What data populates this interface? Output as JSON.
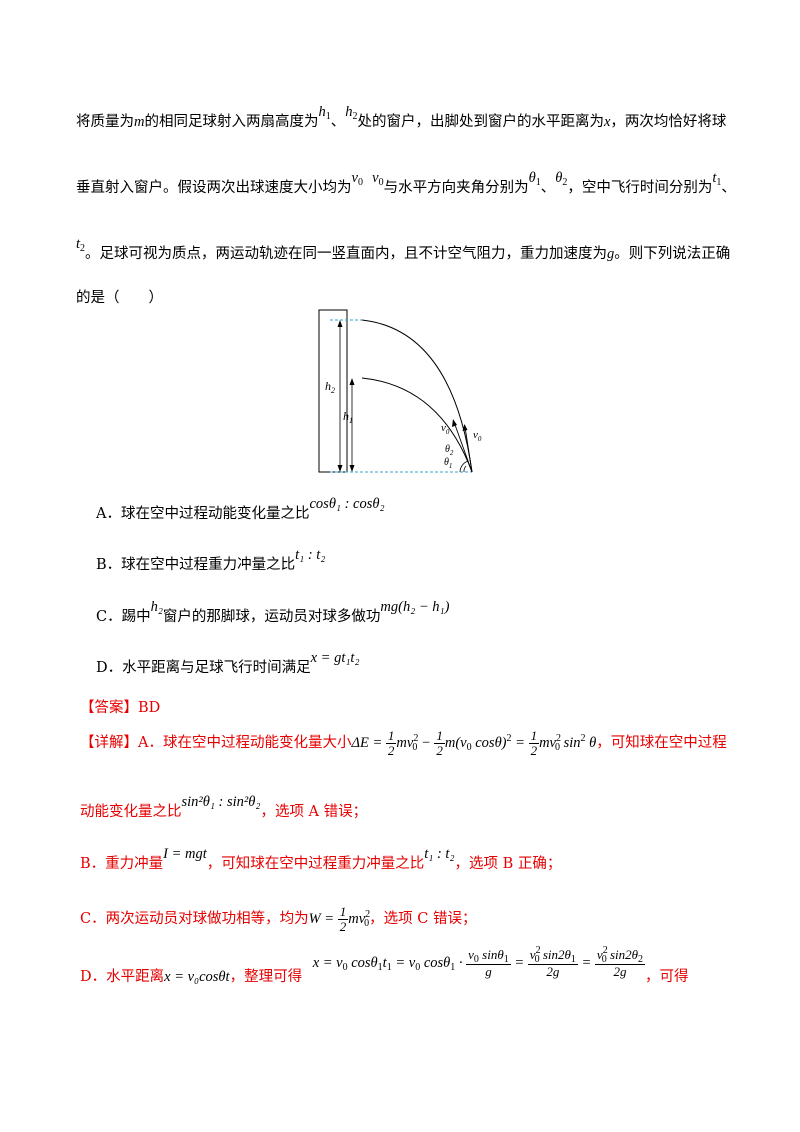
{
  "question": {
    "line1_a": "将质量为",
    "m": "m",
    "line1_b": "的相同足球射入两扇高度为",
    "h1": "h",
    "h1_sub": "1",
    "sep1": "、",
    "h2": "h",
    "h2_sub": "2",
    "line1_c": "处的窗户，出脚处到窗户的水平距离为",
    "x": "x",
    "line1_d": "，两次均恰好将球",
    "line2_a": "垂直射入窗户。假设两次出球速度大小均为",
    "v0a": "v",
    "v0a_sub": "0",
    "v0b": "v",
    "v0b_sub": "0",
    "line2_b": "与水平方向夹角分别为",
    "th1": "θ",
    "th1_sub": "1",
    "sep2": "、",
    "th2": "θ",
    "th2_sub": "2",
    "line2_c": "，空中飞行时间分别为",
    "t1": "t",
    "t1_sub": "1",
    "sep3": "、",
    "t2": "t",
    "t2_sub": "2",
    "line3_a": "。足球可视为质点，两运动轨迹在同一竖直面内，且不计空气阻力，重力加速度为",
    "g": "g",
    "line3_b": "。则下列说法正确",
    "line4": "的是（　　）"
  },
  "figure": {
    "label_h2": "h",
    "label_h2_sub": "2",
    "label_h1": "h",
    "label_h1_sub": "1",
    "label_v0a": "v",
    "label_v0a_sub": "0",
    "label_v0b": "v",
    "label_v0b_sub": "0",
    "label_th2": "θ",
    "label_th2_sub": "2",
    "label_th1": "θ",
    "label_th1_sub": "1"
  },
  "options": {
    "A_text": "A．球在空中过程动能变化量之比",
    "A_math": "cosθ₁ : cosθ₂",
    "B_text": "B．球在空中过程重力冲量之比",
    "B_math": "t₁ : t₂",
    "C_text_a": "C．踢中",
    "C_h2": "h₂",
    "C_text_b": "窗户的那脚球，运动员对球多做功",
    "C_math": "mg(h₂ − h₁)",
    "D_text": "D．水平距离与足球飞行时间满足",
    "D_math": "x = gt₁t₂"
  },
  "answer": {
    "label": "【答案】",
    "value": "BD"
  },
  "explanation": {
    "label": "【详解】",
    "A_a": "A．球在空中过程动能变化量大小",
    "A_b": "，可知球在空中过程",
    "A_c": "动能变化量之比",
    "A_ratio": "sin²θ₁ : sin²θ₂",
    "A_d": "，选项 A 错误；",
    "B_a": "B．重力冲量",
    "B_formula": "I = mgt",
    "B_b": "，可知球在空中过程重力冲量之比",
    "B_ratio": "t₁ : t₂",
    "B_c": "，选项 B 正确；",
    "C_a": "C．两次运动员对球做功相等，均为",
    "C_b": "，选项 C 错误；",
    "D_a": "D．水平距离",
    "D_formula": "x = v₀cosθt",
    "D_b": "，整理可得",
    "D_c": "，可得"
  }
}
